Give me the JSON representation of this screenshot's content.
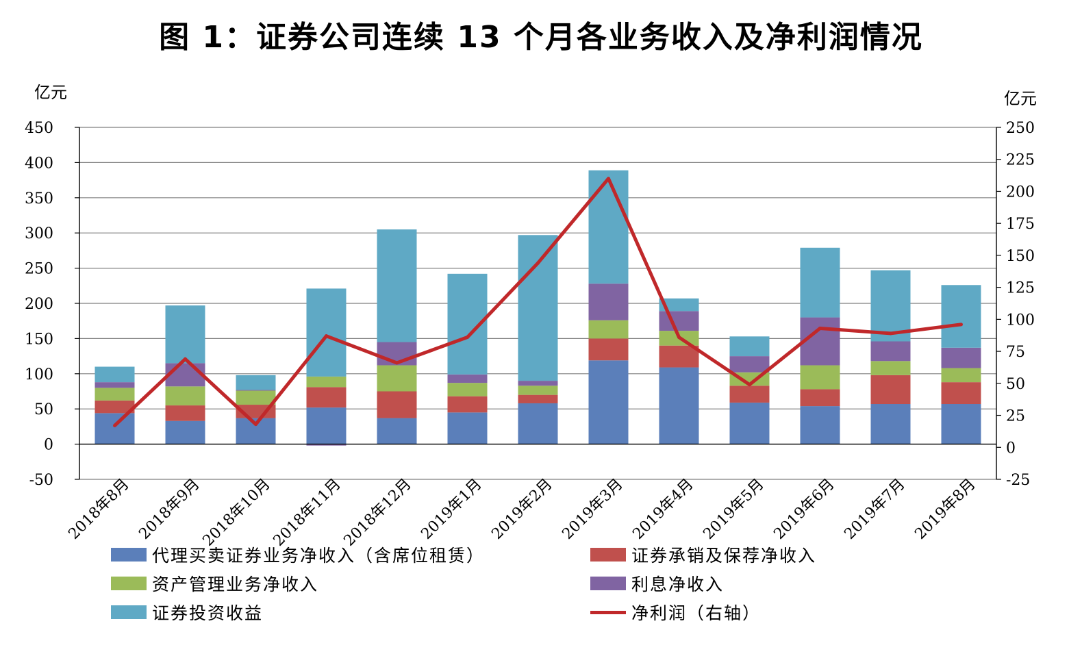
{
  "title": "图 1：证券公司连续 13 个月各业务收入及净利润情况",
  "chart_data": {
    "type": "bar",
    "stacked": true,
    "title": "图 1：证券公司连续 13 个月各业务收入及净利润情况",
    "ylabel_left": "亿元",
    "ylabel_right": "亿元",
    "ylim_left": [
      -50,
      450
    ],
    "yticks_left": [
      "-50",
      "0",
      "50",
      "100",
      "150",
      "200",
      "250",
      "300",
      "350",
      "400",
      "450"
    ],
    "ylim_right": [
      -25,
      250
    ],
    "yticks_right": [
      "-25",
      "0",
      "25",
      "50",
      "75",
      "100",
      "125",
      "150",
      "175",
      "200",
      "225",
      "250"
    ],
    "grid": "horizontal",
    "legend_position": "bottom",
    "categories": [
      "2018年8月",
      "2018年9月",
      "2018年10月",
      "2018年11月",
      "2018年12月",
      "2019年1月",
      "2019年2月",
      "2019年3月",
      "2019年4月",
      "2019年5月",
      "2019年6月",
      "2019年7月",
      "2019年8月"
    ],
    "series": [
      {
        "name": "代理买卖证券业务净收入（含席位租赁）",
        "type": "bar",
        "axis": "left",
        "color": "#5B7FBA",
        "values": [
          44,
          33,
          37,
          52,
          37,
          45,
          58,
          119,
          109,
          59,
          54,
          57,
          57
        ]
      },
      {
        "name": "证券承销及保荐净收入",
        "type": "bar",
        "axis": "left",
        "color": "#C0504D",
        "values": [
          18,
          22,
          19,
          29,
          38,
          23,
          12,
          31,
          31,
          24,
          24,
          41,
          31
        ]
      },
      {
        "name": "资产管理业务净收入",
        "type": "bar",
        "axis": "left",
        "color": "#9BBB59",
        "values": [
          18,
          27,
          20,
          15,
          37,
          19,
          13,
          26,
          21,
          19,
          34,
          20,
          20
        ]
      },
      {
        "name": "利息净收入",
        "type": "bar",
        "axis": "left",
        "color": "#8064A2",
        "values": [
          8,
          33,
          1,
          -2,
          33,
          12,
          7,
          52,
          28,
          23,
          68,
          28,
          29
        ]
      },
      {
        "name": "证券投资收益",
        "type": "bar",
        "axis": "left",
        "color": "#5FA9C5",
        "values": [
          22,
          82,
          21,
          125,
          160,
          143,
          207,
          161,
          18,
          28,
          99,
          101,
          89
        ]
      },
      {
        "name": "净利润（右轴）",
        "type": "line",
        "axis": "right",
        "color": "#C0282A",
        "values": [
          17,
          69,
          18,
          87,
          66,
          86,
          144,
          210,
          86,
          49,
          93,
          89,
          96
        ]
      }
    ]
  }
}
